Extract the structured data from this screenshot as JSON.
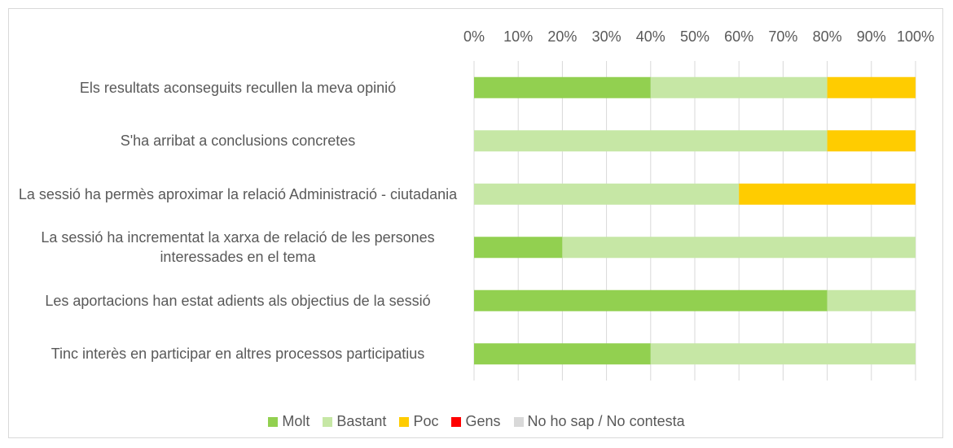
{
  "chart_data": {
    "type": "stacked-bar-horizontal",
    "categories": [
      "Els resultats aconseguits recullen la meva opinió",
      "S'ha arribat a conclusions concretes",
      "La sessió ha permès aproximar la relació Administració - ciutadania",
      "La sessió ha incrementat la xarxa de relació de les persones interessades en el tema",
      "Les aportacions han estat adients als objectius de la sessió",
      "Tinc interès en participar en altres processos participatius"
    ],
    "series": [
      {
        "name": "Molt",
        "color": "#92d050",
        "values": [
          40,
          0,
          0,
          20,
          80,
          40
        ]
      },
      {
        "name": "Bastant",
        "color": "#c6e7a5",
        "values": [
          40,
          80,
          60,
          80,
          20,
          60
        ]
      },
      {
        "name": "Poc",
        "color": "#ffcc00",
        "values": [
          20,
          20,
          40,
          0,
          0,
          0
        ]
      },
      {
        "name": "Gens",
        "color": "#ff0000",
        "values": [
          0,
          0,
          0,
          0,
          0,
          0
        ]
      },
      {
        "name": "No ho sap / No contesta",
        "color": "#d9d9d9",
        "values": [
          0,
          0,
          0,
          0,
          0,
          0
        ]
      }
    ],
    "xlim": [
      0,
      100
    ],
    "xticks": [
      {
        "value": 0,
        "label": "0%"
      },
      {
        "value": 10,
        "label": "10%"
      },
      {
        "value": 20,
        "label": "20%"
      },
      {
        "value": 30,
        "label": "30%"
      },
      {
        "value": 40,
        "label": "40%"
      },
      {
        "value": 50,
        "label": "50%"
      },
      {
        "value": 60,
        "label": "60%"
      },
      {
        "value": 70,
        "label": "70%"
      },
      {
        "value": 80,
        "label": "80%"
      },
      {
        "value": 90,
        "label": "90%"
      },
      {
        "value": 100,
        "label": "100%"
      }
    ],
    "grid": true,
    "legend": "bottom"
  }
}
